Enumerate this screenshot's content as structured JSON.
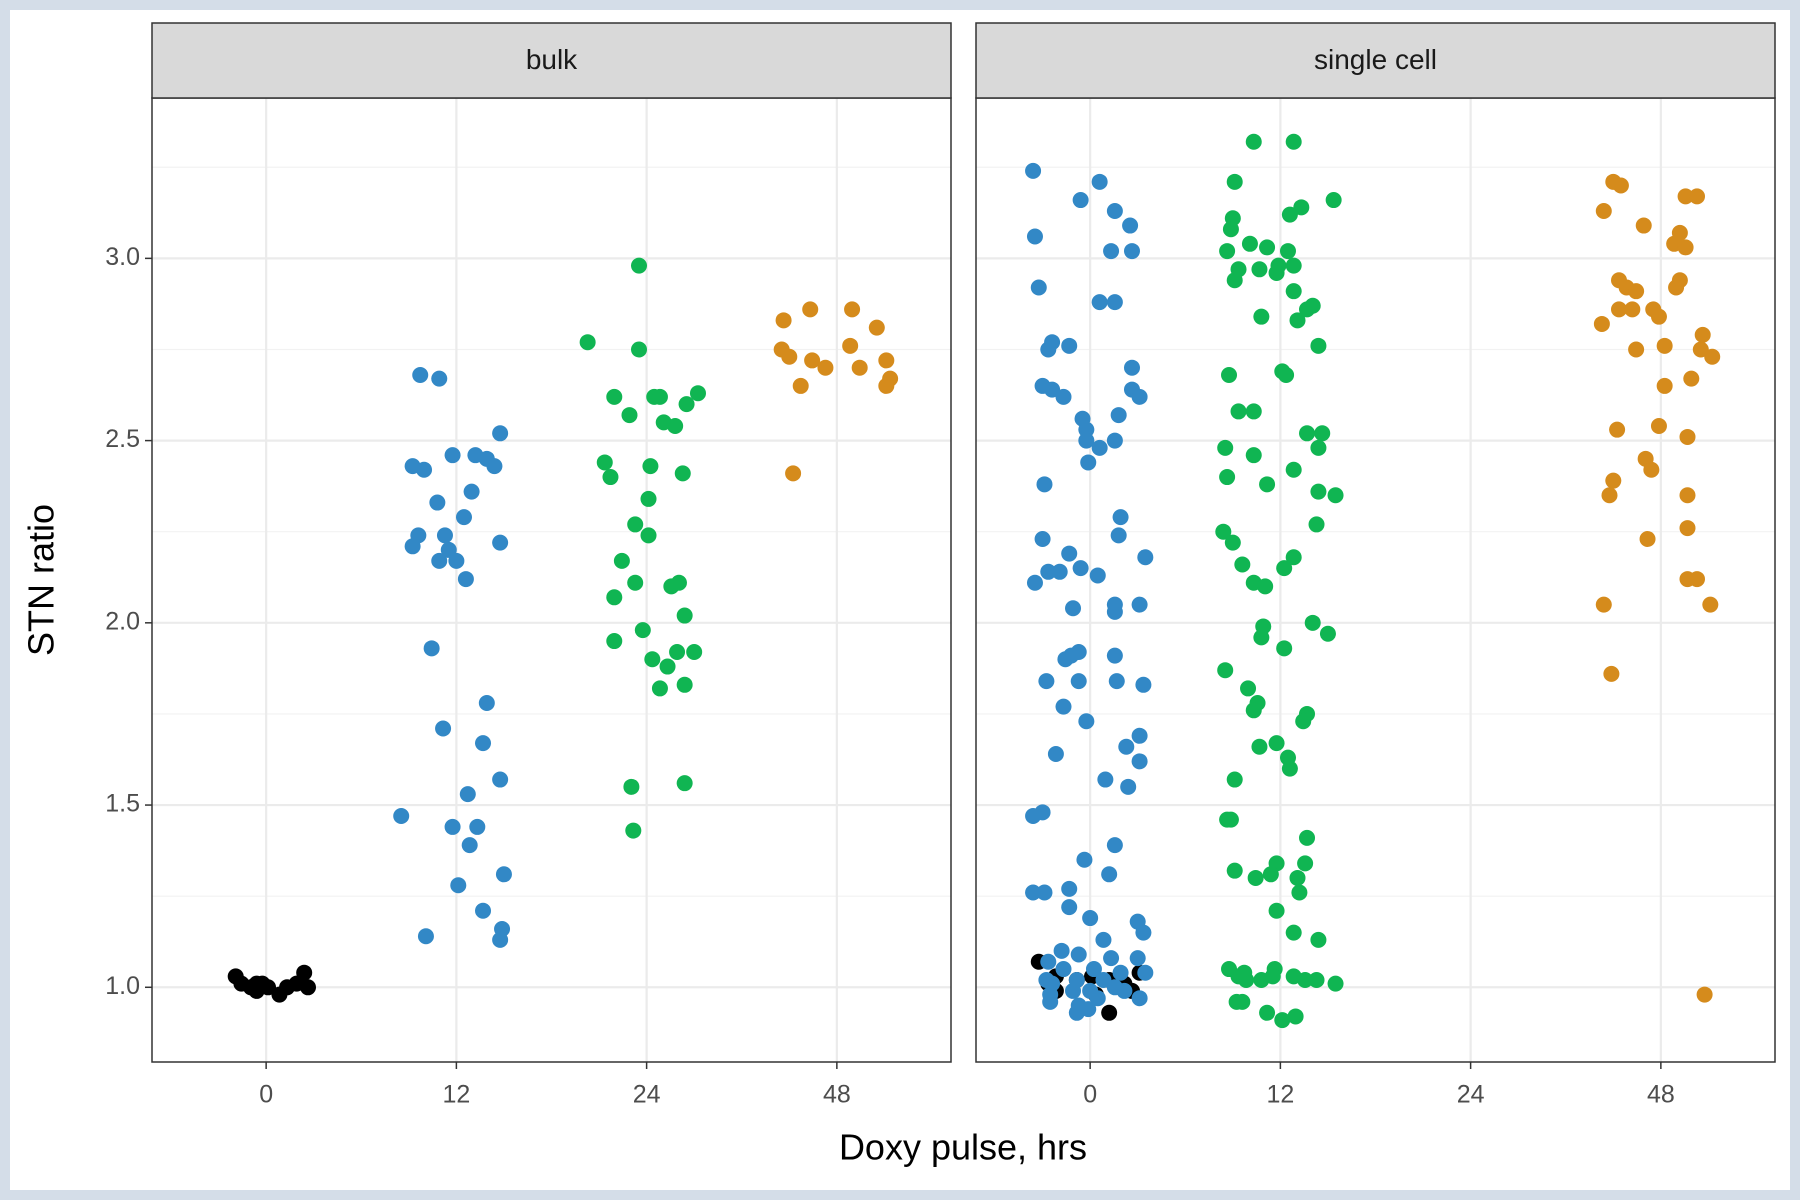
{
  "chart_data": [
    {
      "type": "scatter",
      "title": "bulk",
      "xlim": [
        0.4,
        4.6
      ],
      "ylim": [
        0.795,
        3.44
      ],
      "xticks": [
        {
          "value": 1,
          "label": "0"
        },
        {
          "value": 2,
          "label": "12"
        },
        {
          "value": 3,
          "label": "24"
        },
        {
          "value": 4,
          "label": "48"
        }
      ],
      "yticks": [
        {
          "value": 1,
          "label": "1.0"
        },
        1.5,
        {
          "value": 2,
          "label": "2.0"
        },
        2.5,
        {
          "value": 3,
          "label": "3.0"
        }
      ],
      "minor_yticks": [
        1.25,
        1.75,
        2.25,
        2.75,
        3.25
      ],
      "grid": true,
      "series": [
        {
          "color": "#000000",
          "x": [
            0.84,
            0.87,
            0.92,
            0.95,
            0.98,
            1.01,
            1.07,
            1.11,
            1.16,
            1.2,
            1.22,
            0.95
          ],
          "values": [
            1.03,
            1.01,
            1.0,
            1.01,
            1.01,
            1.0,
            0.98,
            1.0,
            1.01,
            1.04,
            1.0,
            0.99
          ]
        },
        {
          "color": "#3288c6",
          "x": [
            1.81,
            1.91,
            1.77,
            1.83,
            1.98,
            2.1,
            2.16,
            2.2,
            2.23,
            2.08,
            1.9,
            2.04,
            1.8,
            1.77,
            1.94,
            1.96,
            1.91,
            2.0,
            2.05,
            2.23,
            1.87,
            1.93,
            2.16,
            2.14,
            2.23,
            2.06,
            1.71,
            1.98,
            2.11,
            2.07,
            2.25,
            2.01,
            2.14,
            1.84,
            2.24,
            2.23
          ],
          "values": [
            2.68,
            2.67,
            2.43,
            2.42,
            2.46,
            2.46,
            2.45,
            2.43,
            2.52,
            2.36,
            2.33,
            2.29,
            2.24,
            2.21,
            2.24,
            2.2,
            2.17,
            2.17,
            2.12,
            2.22,
            1.93,
            1.71,
            1.78,
            1.67,
            1.57,
            1.53,
            1.47,
            1.44,
            1.44,
            1.39,
            1.31,
            1.28,
            1.21,
            1.14,
            1.16,
            1.13
          ]
        },
        {
          "color": "#10b552",
          "x": [
            2.69,
            2.96,
            2.96,
            2.83,
            3.04,
            3.27,
            3.21,
            2.91,
            3.09,
            3.15,
            2.78,
            2.81,
            3.02,
            3.19,
            3.01,
            2.94,
            3.01,
            2.87,
            2.94,
            2.83,
            3.13,
            3.17,
            3.2,
            2.98,
            2.83,
            3.03,
            3.16,
            3.25,
            3.11,
            3.07,
            3.2,
            3.2,
            2.92,
            2.93,
            3.07
          ],
          "values": [
            2.77,
            2.98,
            2.75,
            2.62,
            2.62,
            2.63,
            2.6,
            2.57,
            2.55,
            2.54,
            2.44,
            2.4,
            2.43,
            2.41,
            2.34,
            2.27,
            2.24,
            2.17,
            2.11,
            2.07,
            2.1,
            2.11,
            2.02,
            1.98,
            1.95,
            1.9,
            1.92,
            1.92,
            1.88,
            1.82,
            1.83,
            1.56,
            1.55,
            1.43,
            2.62
          ]
        },
        {
          "color": "#d58b1c",
          "x": [
            3.72,
            3.86,
            4.08,
            4.21,
            3.71,
            3.75,
            4.07,
            3.87,
            3.94,
            4.12,
            4.26,
            4.28,
            4.26,
            3.81,
            3.77
          ],
          "values": [
            2.83,
            2.86,
            2.86,
            2.81,
            2.75,
            2.73,
            2.76,
            2.72,
            2.7,
            2.7,
            2.72,
            2.67,
            2.65,
            2.65,
            2.41
          ]
        }
      ]
    },
    {
      "type": "scatter",
      "title": "single cell",
      "xlim": [
        0.4,
        4.6
      ],
      "ylim": [
        0.795,
        3.44
      ],
      "xticks": [
        {
          "value": 1,
          "label": "0"
        },
        {
          "value": 2,
          "label": "12"
        },
        {
          "value": 3,
          "label": "24"
        },
        {
          "value": 4,
          "label": "48"
        }
      ],
      "yticks": [
        {
          "value": 1,
          "label": "1.0"
        },
        1.5,
        {
          "value": 2,
          "label": "2.0"
        },
        2.5,
        {
          "value": 3,
          "label": "3.0"
        }
      ],
      "minor_yticks": [
        1.25,
        1.75,
        2.25,
        2.75,
        3.25
      ],
      "grid": true,
      "series": [
        {
          "color": "#000000",
          "x": [
            0.73,
            0.82,
            0.78,
            0.82,
            0.93,
            1.01,
            1.03,
            1.1,
            1.1,
            1.18,
            1.22,
            1.26
          ],
          "values": [
            1.07,
            1.03,
            1.01,
            0.99,
            1.02,
            1.03,
            0.98,
            1.02,
            0.93,
            1.01,
            0.99,
            1.04
          ]
        },
        {
          "color": "#3288c6",
          "x": [
            0.7,
            0.71,
            1.05,
            0.95,
            1.13,
            1.21,
            1.11,
            1.22,
            0.73,
            1.05,
            1.13,
            0.8,
            0.78,
            0.89,
            0.75,
            0.8,
            0.86,
            1.22,
            1.22,
            1.26,
            0.96,
            1.15,
            0.98,
            0.98,
            1.05,
            1.13,
            0.99,
            0.76,
            1.16,
            1.15,
            0.75,
            0.89,
            1.29,
            0.78,
            0.84,
            0.95,
            0.71,
            1.04,
            0.91,
            1.13,
            1.13,
            1.26,
            0.94,
            0.87,
            0.9,
            1.13,
            0.77,
            0.94,
            1.14,
            1.28,
            0.86,
            0.98,
            1.26,
            1.19,
            1.26,
            0.82,
            1.08,
            1.2,
            0.7,
            0.75,
            1.13,
            0.97,
            1.1,
            0.89,
            0.7,
            0.76,
            0.89,
            1.25,
            1.0,
            1.28,
            1.07,
            0.85,
            0.78,
            0.94,
            1.11,
            1.25,
            0.86,
            1.02,
            1.16,
            1.29,
            0.77,
            0.93,
            1.07,
            0.8,
            1.13,
            0.91,
            1.0,
            1.18,
            0.79,
            1.26,
            0.79,
            1.04,
            0.94,
            0.99,
            0.93
          ],
          "values": [
            3.24,
            3.06,
            3.21,
            3.16,
            3.13,
            3.09,
            3.02,
            3.02,
            2.92,
            2.88,
            2.88,
            2.77,
            2.75,
            2.76,
            2.65,
            2.64,
            2.62,
            2.7,
            2.64,
            2.62,
            2.56,
            2.57,
            2.53,
            2.5,
            2.48,
            2.5,
            2.44,
            2.38,
            2.29,
            2.24,
            2.23,
            2.19,
            2.18,
            2.14,
            2.14,
            2.15,
            2.11,
            2.13,
            2.04,
            2.05,
            2.03,
            2.05,
            1.92,
            1.9,
            1.91,
            1.91,
            1.84,
            1.84,
            1.84,
            1.83,
            1.77,
            1.73,
            1.69,
            1.66,
            1.62,
            1.64,
            1.57,
            1.55,
            1.47,
            1.48,
            1.39,
            1.35,
            1.31,
            1.27,
            1.26,
            1.26,
            1.22,
            1.18,
            1.19,
            1.15,
            1.13,
            1.1,
            1.07,
            1.09,
            1.08,
            1.08,
            1.05,
            1.05,
            1.04,
            1.04,
            1.02,
            1.02,
            1.02,
            1.01,
            1.0,
            0.99,
            0.99,
            0.99,
            0.96,
            0.97,
            0.98,
            0.97,
            0.95,
            0.94,
            0.93
          ]
        },
        {
          "color": "#10b552",
          "x": [
            1.86,
            2.07,
            1.76,
            2.28,
            2.11,
            2.05,
            1.75,
            1.74,
            1.84,
            1.93,
            1.72,
            2.04,
            1.89,
            1.99,
            1.98,
            2.07,
            1.78,
            1.76,
            2.07,
            2.17,
            2.14,
            1.9,
            2.09,
            2.2,
            1.73,
            2.01,
            2.03,
            1.78,
            1.86,
            2.14,
            2.22,
            1.71,
            1.86,
            2.2,
            1.72,
            2.07,
            1.93,
            2.2,
            2.29,
            2.19,
            1.7,
            1.75,
            1.8,
            2.07,
            2.02,
            1.86,
            1.92,
            1.91,
            2.17,
            2.25,
            1.9,
            2.02,
            1.71,
            1.83,
            1.88,
            1.86,
            2.14,
            2.12,
            1.89,
            1.98,
            2.04,
            2.05,
            1.76,
            1.72,
            1.74,
            2.14,
            1.98,
            2.13,
            1.76,
            1.95,
            1.87,
            2.09,
            2.1,
            1.98,
            2.07,
            2.2,
            1.73,
            1.81,
            1.97,
            2.07,
            1.78,
            1.9,
            2.13,
            2.19,
            2.29,
            1.96,
            1.82,
            1.77,
            1.8,
            1.93,
            2.01,
            2.08
          ],
          "values": [
            3.32,
            3.32,
            3.21,
            3.16,
            3.14,
            3.12,
            3.11,
            3.08,
            3.04,
            3.03,
            3.02,
            3.02,
            2.97,
            2.98,
            2.96,
            2.98,
            2.97,
            2.94,
            2.91,
            2.87,
            2.86,
            2.84,
            2.83,
            2.76,
            2.68,
            2.69,
            2.68,
            2.58,
            2.58,
            2.52,
            2.52,
            2.48,
            2.46,
            2.48,
            2.4,
            2.42,
            2.38,
            2.36,
            2.35,
            2.27,
            2.25,
            2.22,
            2.16,
            2.18,
            2.15,
            2.11,
            2.1,
            1.99,
            2.0,
            1.97,
            1.96,
            1.93,
            1.87,
            1.82,
            1.78,
            1.76,
            1.75,
            1.73,
            1.66,
            1.67,
            1.63,
            1.6,
            1.57,
            1.46,
            1.46,
            1.41,
            1.34,
            1.34,
            1.32,
            1.31,
            1.3,
            1.3,
            1.26,
            1.21,
            1.15,
            1.13,
            1.05,
            1.04,
            1.05,
            1.03,
            1.03,
            1.02,
            1.02,
            1.02,
            1.01,
            1.03,
            1.02,
            0.96,
            0.96,
            0.93,
            0.91,
            0.92
          ]
        },
        {
          "color": "#d58b1c",
          "x": [
            3.75,
            3.79,
            4.13,
            4.19,
            3.7,
            3.91,
            4.1,
            4.07,
            4.13,
            4.1,
            3.78,
            3.82,
            3.87,
            4.08,
            3.78,
            3.85,
            3.96,
            3.99,
            3.69,
            4.22,
            3.87,
            4.02,
            4.21,
            4.27,
            4.02,
            4.16,
            3.99,
            3.77,
            4.14,
            3.92,
            3.95,
            3.75,
            3.73,
            4.14,
            4.14,
            3.93,
            4.14,
            4.19,
            3.7,
            4.26,
            3.74,
            4.23
          ],
          "values": [
            3.21,
            3.2,
            3.17,
            3.17,
            3.13,
            3.09,
            3.07,
            3.04,
            3.03,
            2.94,
            2.94,
            2.92,
            2.91,
            2.92,
            2.86,
            2.86,
            2.86,
            2.84,
            2.82,
            2.79,
            2.75,
            2.76,
            2.75,
            2.73,
            2.65,
            2.67,
            2.54,
            2.53,
            2.51,
            2.45,
            2.42,
            2.39,
            2.35,
            2.35,
            2.26,
            2.23,
            2.12,
            2.12,
            2.05,
            2.05,
            1.86,
            0.98
          ]
        }
      ]
    }
  ],
  "axis_labels": {
    "x": "Doxy pulse, hrs",
    "y": "STN ratio"
  }
}
